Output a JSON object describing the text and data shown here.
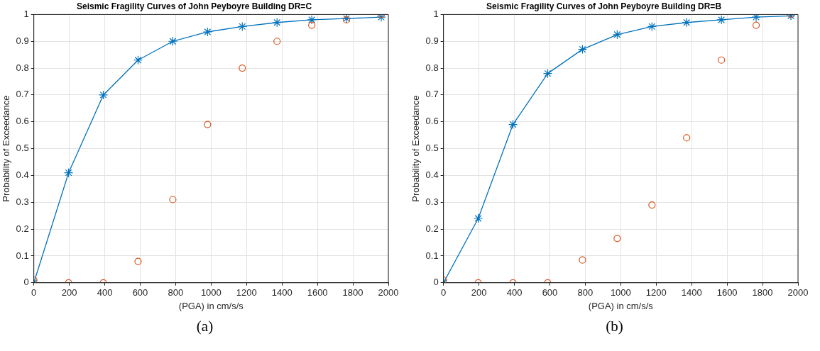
{
  "chart_data": [
    {
      "type": "line",
      "title": "Seismic Fragility Curves of John Peyboyre Building DR=C",
      "xlabel": "(PGA) in cm/s/s",
      "ylabel": "Probability of Exceedance",
      "annotations": [
        "(a)"
      ],
      "x": [
        0,
        196,
        392,
        588,
        784,
        980,
        1176,
        1372,
        1568,
        1764,
        1960
      ],
      "series": [
        {
          "type": "line",
          "color": "#0072bd",
          "marker": "cross",
          "line_style": "solid",
          "values": [
            0,
            0.41,
            0.7,
            0.83,
            0.9,
            0.935,
            0.955,
            0.97,
            0.98,
            0.985,
            0.99
          ]
        },
        {
          "type": "scatter",
          "color": "#d95319",
          "marker": "circle",
          "values": [
            0.01,
            0,
            0,
            0.08,
            0.31,
            0.59,
            0.8,
            0.9,
            0.96,
            0.98,
            1.0
          ]
        }
      ],
      "xlim": [
        0,
        2000
      ],
      "xticks": [
        0,
        200,
        400,
        600,
        800,
        1000,
        1200,
        1400,
        1600,
        1800,
        2000
      ],
      "ylim": [
        0,
        1
      ],
      "yticks": [
        0,
        0.1,
        0.2,
        0.3,
        0.4,
        0.5,
        0.6,
        0.7,
        0.8,
        0.9,
        1
      ],
      "grid": true,
      "legend": false
    },
    {
      "type": "line",
      "title": "Seismic Fragility Curves of John Peyboyre Building DR=B",
      "xlabel": "(PGA) in cm/s/s",
      "ylabel": "Probability of Exceedance",
      "annotations": [
        "(b)"
      ],
      "x": [
        0,
        196,
        392,
        588,
        784,
        980,
        1176,
        1372,
        1568,
        1764,
        1960
      ],
      "series": [
        {
          "type": "line",
          "color": "#0072bd",
          "marker": "cross",
          "line_style": "solid",
          "values": [
            0,
            0.24,
            0.59,
            0.78,
            0.87,
            0.925,
            0.955,
            0.97,
            0.98,
            0.99,
            0.995
          ]
        },
        {
          "type": "scatter",
          "color": "#d95319",
          "marker": "circle",
          "values": [
            0.01,
            0,
            0,
            0,
            0.085,
            0.165,
            0.29,
            0.54,
            0.83,
            0.96,
            1.0
          ]
        }
      ],
      "xlim": [
        0,
        2000
      ],
      "xticks": [
        0,
        200,
        400,
        600,
        800,
        1000,
        1200,
        1400,
        1600,
        1800,
        2000
      ],
      "ylim": [
        0,
        1
      ],
      "yticks": [
        0,
        0.1,
        0.2,
        0.3,
        0.4,
        0.5,
        0.6,
        0.7,
        0.8,
        0.9,
        1
      ],
      "grid": true,
      "legend": false
    }
  ]
}
